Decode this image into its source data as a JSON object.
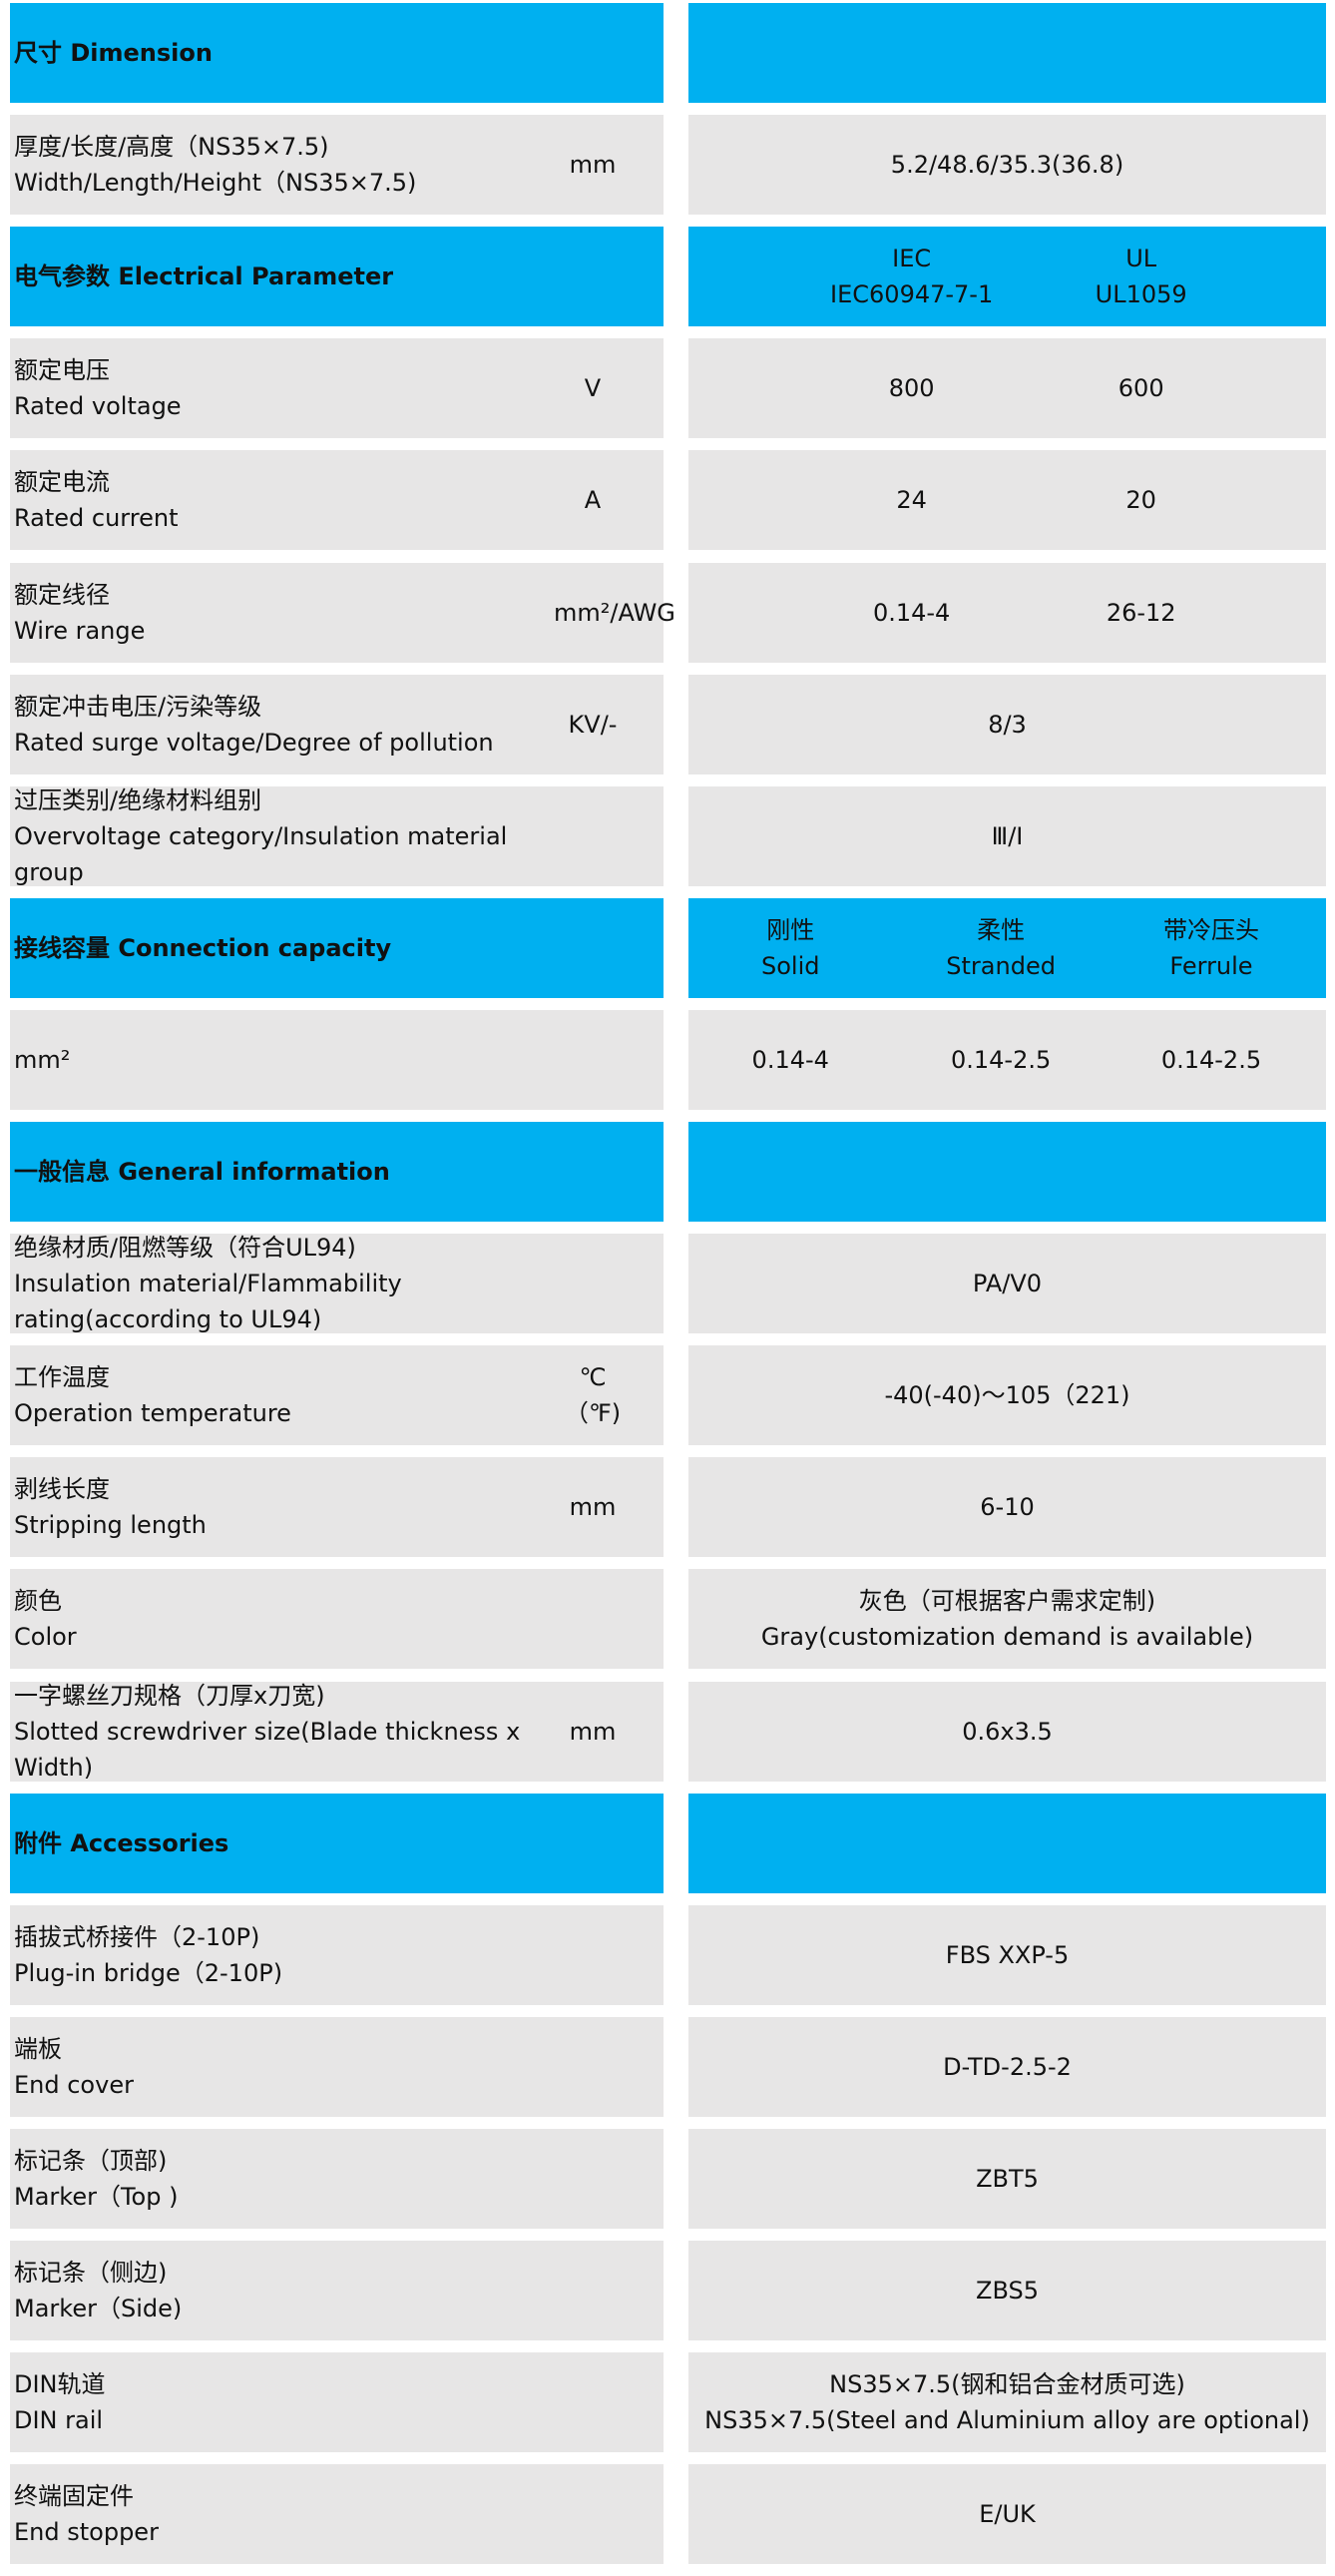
{
  "colors": {
    "header": "#00B0F0",
    "row": "#E7E6E6"
  },
  "rows": [
    {
      "type": "header",
      "label": "尺寸 Dimension",
      "values": []
    },
    {
      "type": "row",
      "label": [
        "厚度/长度/高度（NS35×7.5)",
        "Width/Length/Height（NS35×7.5)"
      ],
      "unit": "mm",
      "values": [
        "5.2/48.6/35.3(36.8)"
      ]
    },
    {
      "type": "header",
      "label": "电气参数 Electrical Parameter",
      "values": [
        "IEC\nIEC60947-7-1",
        "UL\nUL1059"
      ]
    },
    {
      "type": "row",
      "label": [
        "额定电压",
        "Rated voltage"
      ],
      "unit": "V",
      "values": [
        "800",
        "600"
      ]
    },
    {
      "type": "row",
      "label": [
        "额定电流",
        "Rated current"
      ],
      "unit": "A",
      "values": [
        "24",
        "20"
      ]
    },
    {
      "type": "row",
      "label": [
        "额定线径",
        "Wire range"
      ],
      "unit": "mm²/AWG",
      "values": [
        "0.14-4",
        "26-12"
      ]
    },
    {
      "type": "row",
      "label": [
        "额定冲击电压/污染等级",
        "Rated surge voltage/Degree of pollution"
      ],
      "unit": "KV/-",
      "values": [
        "8/3"
      ]
    },
    {
      "type": "row",
      "label": [
        "过压类别/绝缘材料组别",
        "Overvoltage category/Insulation material group"
      ],
      "unit": "",
      "values": [
        "Ⅲ/Ⅰ"
      ]
    },
    {
      "type": "header",
      "label": "接线容量 Connection capacity",
      "values": [
        "刚性\nSolid",
        "柔性\nStranded",
        "带冷压头\nFerrule"
      ]
    },
    {
      "type": "row",
      "label": [
        "mm²"
      ],
      "unit": "",
      "values": [
        "0.14-4",
        "0.14-2.5",
        "0.14-2.5"
      ]
    },
    {
      "type": "header",
      "label": "一般信息 General information",
      "values": []
    },
    {
      "type": "row",
      "label": [
        "绝缘材质/阻燃等级（符合UL94)",
        "Insulation material/Flammability rating(according to UL94)"
      ],
      "unit": "",
      "values": [
        "PA/V0"
      ]
    },
    {
      "type": "row",
      "label": [
        "工作温度",
        "Operation temperature"
      ],
      "unit": "℃（℉)",
      "values": [
        "-40(-40)～105（221)"
      ]
    },
    {
      "type": "row",
      "label": [
        "剥线长度",
        "Stripping length"
      ],
      "unit": "mm",
      "values": [
        "6-10"
      ]
    },
    {
      "type": "row",
      "label": [
        "颜色",
        "Color"
      ],
      "unit": "",
      "values": [
        "灰色（可根据客户需求定制)\nGray(customization demand is available)"
      ]
    },
    {
      "type": "row",
      "label": [
        "一字螺丝刀规格（刀厚x刀宽)",
        "Slotted screwdriver size(Blade thickness x Width)"
      ],
      "unit": "mm",
      "values": [
        "0.6x3.5"
      ]
    },
    {
      "type": "header",
      "label": "附件 Accessories",
      "values": []
    },
    {
      "type": "row",
      "label": [
        "插拔式桥接件（2-10P)",
        "Plug-in bridge（2-10P)"
      ],
      "unit": "",
      "values": [
        "FBS XXP-5"
      ]
    },
    {
      "type": "row",
      "label": [
        "端板",
        "End cover"
      ],
      "unit": "",
      "values": [
        "D-TD-2.5-2"
      ]
    },
    {
      "type": "row",
      "label": [
        "标记条（顶部)",
        "Marker（Top )"
      ],
      "unit": "",
      "values": [
        "ZBT5"
      ]
    },
    {
      "type": "row",
      "label": [
        "标记条（侧边)",
        "Marker（Side)"
      ],
      "unit": "",
      "values": [
        "ZBS5"
      ]
    },
    {
      "type": "row",
      "label": [
        "DIN轨道",
        "DIN rail"
      ],
      "unit": "",
      "values": [
        "NS35×7.5(钢和铝合金材质可选)\nNS35×7.5(Steel and Aluminium alloy are optional)"
      ]
    },
    {
      "type": "row",
      "label": [
        "终端固定件",
        "End stopper"
      ],
      "unit": "",
      "values": [
        "E/UK"
      ]
    }
  ]
}
